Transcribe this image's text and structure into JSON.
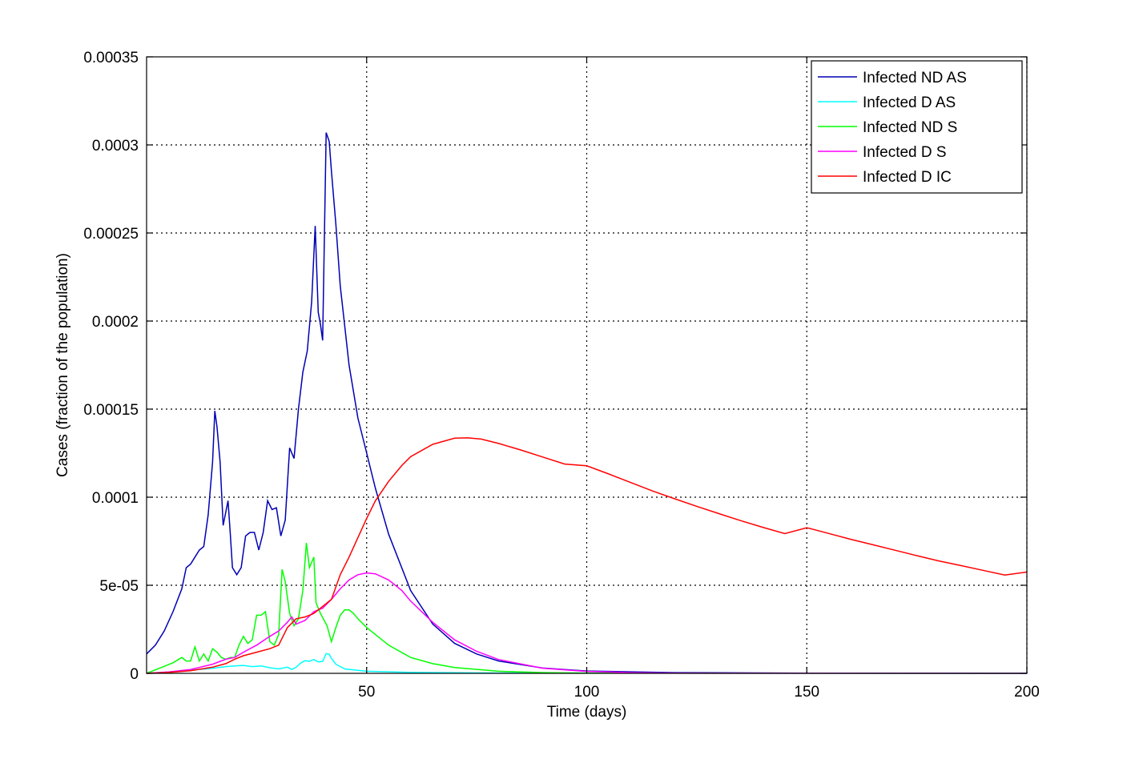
{
  "chart_data": {
    "type": "line",
    "title": "",
    "xlabel": "Time (days)",
    "ylabel": "Cases (fraction of the population)",
    "xlim": [
      0,
      200
    ],
    "ylim": [
      0,
      0.00035
    ],
    "grid": true,
    "legend_position": "top-right",
    "x_ticks": [
      50,
      100,
      150,
      200
    ],
    "x_tick_labels": [
      "50",
      "100",
      "150",
      "200"
    ],
    "y_ticks": [
      0,
      5e-05,
      0.0001,
      0.00015,
      0.0002,
      0.00025,
      0.0003,
      0.00035
    ],
    "y_tick_labels": [
      "0",
      "5e-05",
      "0.0001",
      "0.00015",
      "0.0002",
      "0.00025",
      "0.0003",
      "0.00035"
    ],
    "series": [
      {
        "name": "Infected ND AS",
        "color": "#0000b4",
        "points": [
          [
            0,
            1.1e-05
          ],
          [
            2,
            1.6e-05
          ],
          [
            4,
            2.4e-05
          ],
          [
            6,
            3.5e-05
          ],
          [
            8,
            4.8e-05
          ],
          [
            9,
            6e-05
          ],
          [
            10,
            6.2e-05
          ],
          [
            11,
            6.6e-05
          ],
          [
            12,
            7e-05
          ],
          [
            13,
            7.2e-05
          ],
          [
            14,
            9e-05
          ],
          [
            15,
            0.00012
          ],
          [
            15.5,
            0.000149
          ],
          [
            16,
            0.00014
          ],
          [
            16.7,
            0.00012
          ],
          [
            17.4,
            8.4e-05
          ],
          [
            18.5,
            9.8e-05
          ],
          [
            19,
            8e-05
          ],
          [
            19.5,
            6e-05
          ],
          [
            20.5,
            5.6e-05
          ],
          [
            21.5,
            6e-05
          ],
          [
            22.5,
            7.8e-05
          ],
          [
            23.5,
            8e-05
          ],
          [
            24.5,
            8e-05
          ],
          [
            25.5,
            7e-05
          ],
          [
            26.5,
            8e-05
          ],
          [
            27.5,
            9.8e-05
          ],
          [
            28.5,
            9.3e-05
          ],
          [
            29.5,
            9.4e-05
          ],
          [
            30.5,
            7.8e-05
          ],
          [
            31.5,
            8.7e-05
          ],
          [
            32.5,
            0.000128
          ],
          [
            33.5,
            0.000122
          ],
          [
            34.5,
            0.00015
          ],
          [
            35.5,
            0.000171
          ],
          [
            36.5,
            0.000183
          ],
          [
            37.5,
            0.000211
          ],
          [
            38.3,
            0.000254
          ],
          [
            39,
            0.000205
          ],
          [
            39.5,
            0.000198
          ],
          [
            40,
            0.000189
          ],
          [
            40.8,
            0.000307
          ],
          [
            41.5,
            0.000302
          ],
          [
            42,
            0.000285
          ],
          [
            43,
            0.000255
          ],
          [
            44,
            0.00022
          ],
          [
            46,
            0.000175
          ],
          [
            48,
            0.000145
          ],
          [
            50,
            0.000125
          ],
          [
            52,
            0.000105
          ],
          [
            55,
            7.9e-05
          ],
          [
            60,
            4.7e-05
          ],
          [
            65,
            2.8e-05
          ],
          [
            70,
            1.7e-05
          ],
          [
            75,
            1.1e-05
          ],
          [
            80,
            7e-06
          ],
          [
            90,
            3e-06
          ],
          [
            100,
            1.3e-06
          ],
          [
            120,
            4e-07
          ],
          [
            150,
            1e-07
          ],
          [
            200,
            0
          ]
        ]
      },
      {
        "name": "Infected D AS",
        "color": "#00ffff",
        "points": [
          [
            0,
            0
          ],
          [
            5,
            8e-07
          ],
          [
            10,
            1.8e-06
          ],
          [
            15,
            2.8e-06
          ],
          [
            18,
            3.8e-06
          ],
          [
            20,
            4.2e-06
          ],
          [
            22,
            4.5e-06
          ],
          [
            24,
            3.8e-06
          ],
          [
            26,
            4.2e-06
          ],
          [
            28,
            3.2e-06
          ],
          [
            30,
            2.5e-06
          ],
          [
            32,
            3.5e-06
          ],
          [
            33,
            2.2e-06
          ],
          [
            34,
            3.5e-06
          ],
          [
            35,
            5.8e-06
          ],
          [
            36,
            7.2e-06
          ],
          [
            37,
            6.8e-06
          ],
          [
            38,
            7.8e-06
          ],
          [
            39,
            6.5e-06
          ],
          [
            40,
            6.8e-06
          ],
          [
            40.8,
            1.12e-05
          ],
          [
            41.5,
            1.08e-05
          ],
          [
            42,
            8.5e-06
          ],
          [
            43,
            5.2e-06
          ],
          [
            45,
            2.5e-06
          ],
          [
            50,
            1.2e-06
          ],
          [
            60,
            5e-07
          ],
          [
            80,
            2e-07
          ],
          [
            200,
            0
          ]
        ]
      },
      {
        "name": "Infected ND S",
        "color": "#00ff00",
        "points": [
          [
            0,
            0
          ],
          [
            3,
            3e-06
          ],
          [
            6,
            6e-06
          ],
          [
            8,
            9e-06
          ],
          [
            9,
            7e-06
          ],
          [
            10,
            7e-06
          ],
          [
            11,
            1.5e-05
          ],
          [
            12,
            7e-06
          ],
          [
            13,
            1.1e-05
          ],
          [
            14,
            7e-06
          ],
          [
            15,
            1.4e-05
          ],
          [
            16,
            1.2e-05
          ],
          [
            17,
            9e-06
          ],
          [
            18,
            8e-06
          ],
          [
            19,
            9e-06
          ],
          [
            20,
            9e-06
          ],
          [
            21,
            1.6e-05
          ],
          [
            22,
            2.1e-05
          ],
          [
            23,
            1.7e-05
          ],
          [
            24,
            1.9e-05
          ],
          [
            25,
            3.3e-05
          ],
          [
            26,
            3.3e-05
          ],
          [
            27,
            3.5e-05
          ],
          [
            28,
            1.8e-05
          ],
          [
            29,
            1.6e-05
          ],
          [
            30,
            2.2e-05
          ],
          [
            30.8,
            5.9e-05
          ],
          [
            31.5,
            5.2e-05
          ],
          [
            32.5,
            3.4e-05
          ],
          [
            33.5,
            2.7e-05
          ],
          [
            34.5,
            3.1e-05
          ],
          [
            35.5,
            4.7e-05
          ],
          [
            36.3,
            7.4e-05
          ],
          [
            37,
            6e-05
          ],
          [
            38,
            6.6e-05
          ],
          [
            38.5,
            4e-05
          ],
          [
            39.5,
            3.4e-05
          ],
          [
            41,
            2.7e-05
          ],
          [
            42,
            1.8e-05
          ],
          [
            43,
            2.6e-05
          ],
          [
            44,
            3.3e-05
          ],
          [
            45,
            3.6e-05
          ],
          [
            46,
            3.6e-05
          ],
          [
            47,
            3.4e-05
          ],
          [
            48,
            3.1e-05
          ],
          [
            50,
            2.6e-05
          ],
          [
            55,
            1.6e-05
          ],
          [
            60,
            9e-06
          ],
          [
            65,
            5.5e-06
          ],
          [
            70,
            3.3e-06
          ],
          [
            80,
            1.2e-06
          ],
          [
            90,
            4e-07
          ],
          [
            100,
            1e-07
          ],
          [
            200,
            0
          ]
        ]
      },
      {
        "name": "Infected D S",
        "color": "#ff00ff",
        "points": [
          [
            0,
            0
          ],
          [
            5,
            8e-07
          ],
          [
            10,
            2.2e-06
          ],
          [
            15,
            5.2e-06
          ],
          [
            18,
            8e-06
          ],
          [
            20,
            9e-06
          ],
          [
            22,
            1.2e-05
          ],
          [
            25,
            1.6e-05
          ],
          [
            28,
            2.1e-05
          ],
          [
            30,
            2.4e-05
          ],
          [
            32,
            2.9e-05
          ],
          [
            33,
            3.2e-05
          ],
          [
            34,
            2.8e-05
          ],
          [
            36,
            3e-05
          ],
          [
            38,
            3.5e-05
          ],
          [
            40,
            3.7e-05
          ],
          [
            42,
            4.2e-05
          ],
          [
            44,
            4.8e-05
          ],
          [
            46,
            5.3e-05
          ],
          [
            48,
            5.6e-05
          ],
          [
            50,
            5.7e-05
          ],
          [
            52,
            5.65e-05
          ],
          [
            55,
            5.3e-05
          ],
          [
            58,
            4.7e-05
          ],
          [
            60,
            4.1e-05
          ],
          [
            65,
            2.9e-05
          ],
          [
            70,
            1.9e-05
          ],
          [
            75,
            1.25e-05
          ],
          [
            80,
            7.8e-06
          ],
          [
            90,
            2.9e-06
          ],
          [
            100,
            1.1e-06
          ],
          [
            110,
            4e-07
          ],
          [
            120,
            1e-07
          ],
          [
            200,
            0
          ]
        ]
      },
      {
        "name": "Infected D IC",
        "color": "#ff0000",
        "points": [
          [
            0,
            0
          ],
          [
            5,
            5e-07
          ],
          [
            10,
            1.5e-06
          ],
          [
            15,
            3.5e-06
          ],
          [
            18,
            5.5e-06
          ],
          [
            20,
            8e-06
          ],
          [
            22,
            1e-05
          ],
          [
            25,
            1.2e-05
          ],
          [
            28,
            1.4e-05
          ],
          [
            30,
            1.6e-05
          ],
          [
            32,
            2.6e-05
          ],
          [
            34,
            3.1e-05
          ],
          [
            36,
            3.2e-05
          ],
          [
            38,
            3.4e-05
          ],
          [
            40,
            3.8e-05
          ],
          [
            42,
            4.2e-05
          ],
          [
            44,
            5.6e-05
          ],
          [
            46,
            6.6e-05
          ],
          [
            48,
            7.7e-05
          ],
          [
            50,
            8.8e-05
          ],
          [
            52,
            9.8e-05
          ],
          [
            55,
            0.000109
          ],
          [
            58,
            0.000118
          ],
          [
            60,
            0.000123
          ],
          [
            65,
            0.00013
          ],
          [
            70,
            0.0001335
          ],
          [
            73,
            0.0001337
          ],
          [
            76,
            0.000133
          ],
          [
            80,
            0.0001305
          ],
          [
            85,
            0.0001268
          ],
          [
            90,
            0.0001228
          ],
          [
            95,
            0.0001188
          ],
          [
            100,
            0.0001178
          ],
          [
            105,
            0.0001132
          ],
          [
            110,
            0.0001083
          ],
          [
            115,
            0.0001035
          ],
          [
            120,
            9.91e-05
          ],
          [
            125,
            9.48e-05
          ],
          [
            130,
            9.07e-05
          ],
          [
            135,
            8.67e-05
          ],
          [
            140,
            8.29e-05
          ],
          [
            145,
            7.93e-05
          ],
          [
            150,
            8.27e-05
          ],
          [
            155,
            7.94e-05
          ],
          [
            160,
            7.61e-05
          ],
          [
            165,
            7.3e-05
          ],
          [
            170,
            6.99e-05
          ],
          [
            175,
            6.68e-05
          ],
          [
            180,
            6.38e-05
          ],
          [
            185,
            6.12e-05
          ],
          [
            190,
            5.85e-05
          ],
          [
            195,
            5.58e-05
          ],
          [
            200,
            5.75e-05
          ]
        ]
      }
    ]
  }
}
